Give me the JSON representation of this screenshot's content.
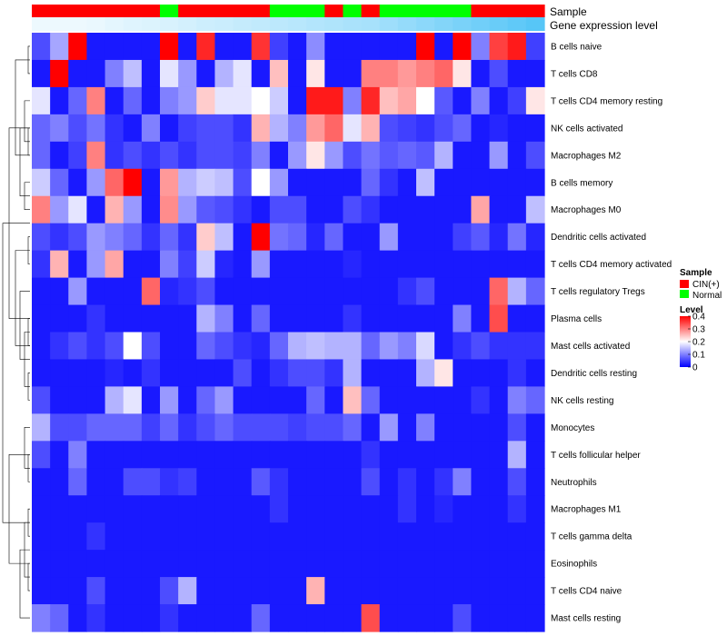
{
  "chart_data": {
    "type": "heatmap",
    "annotation_labels": {
      "sample": "Sample",
      "gene_expression": "Gene expression level"
    },
    "legend_sample": {
      "title": "Sample",
      "items": [
        {
          "label": "CIN(+)",
          "color": "#ff0000"
        },
        {
          "label": "Normal",
          "color": "#00ff00"
        }
      ]
    },
    "legend_level": {
      "title": "Level",
      "ticks": [
        "0.4",
        "0.3",
        "0.2",
        "0.1",
        "0"
      ],
      "tick_values": [
        0.4,
        0.3,
        0.2,
        0.1,
        0
      ],
      "range": [
        0,
        0.4
      ],
      "colors": {
        "low": "#0000ff",
        "mid": "#ffffff",
        "high": "#ff0000"
      }
    },
    "sample_groups": [
      "CIN(+)",
      "CIN(+)",
      "CIN(+)",
      "CIN(+)",
      "CIN(+)",
      "CIN(+)",
      "CIN(+)",
      "Normal",
      "CIN(+)",
      "CIN(+)",
      "CIN(+)",
      "CIN(+)",
      "CIN(+)",
      "Normal",
      "Normal",
      "Normal",
      "CIN(+)",
      "Normal",
      "CIN(+)",
      "Normal",
      "Normal",
      "Normal",
      "Normal",
      "Normal",
      "CIN(+)",
      "CIN(+)",
      "CIN(+)",
      "CIN(+)"
    ],
    "gene_expression_level": [
      0.1,
      0.1,
      0.1,
      0.12,
      0.15,
      0.18,
      0.2,
      0.22,
      0.25,
      0.28,
      0.3,
      0.33,
      0.35,
      0.38,
      0.4,
      0.43,
      0.45,
      0.48,
      0.5,
      0.55,
      0.6,
      0.65,
      0.7,
      0.75,
      0.8,
      0.85,
      0.9,
      0.95
    ],
    "rows": [
      "B cells naive",
      "T cells CD8",
      "T cells CD4 memory resting",
      "NK cells activated",
      "Macrophages M2",
      "B cells memory",
      "Macrophages M0",
      "Dendritic cells activated",
      "T cells CD4 memory activated",
      "T cells regulatory  Tregs",
      "Plasma cells",
      "Mast cells activated",
      "Dendritic cells resting",
      "NK cells resting",
      "Monocytes",
      "T cells follicular helper",
      "Neutrophils",
      "Macrophages M1",
      "T cells gamma delta",
      "Eosinophils",
      "T cells CD4 naive",
      "Mast cells resting"
    ],
    "values": [
      [
        0.06,
        0.13,
        0.4,
        0.02,
        0.02,
        0.02,
        0.02,
        0.4,
        0.02,
        0.37,
        0.02,
        0.02,
        0.36,
        0.05,
        0.02,
        0.11,
        0.02,
        0.02,
        0.02,
        0.02,
        0.02,
        0.4,
        0.02,
        0.4,
        0.1,
        0.35,
        0.38,
        0.05
      ],
      [
        0.02,
        0.4,
        0.02,
        0.02,
        0.1,
        0.15,
        0.02,
        0.18,
        0.12,
        0.02,
        0.14,
        0.18,
        0.02,
        0.25,
        0.02,
        0.22,
        0.02,
        0.02,
        0.3,
        0.3,
        0.28,
        0.3,
        0.32,
        0.22,
        0.02,
        0.06,
        0.02,
        0.02
      ],
      [
        0.18,
        0.02,
        0.08,
        0.3,
        0.02,
        0.08,
        0.02,
        0.1,
        0.12,
        0.24,
        0.18,
        0.18,
        0.2,
        0.16,
        0.02,
        0.38,
        0.38,
        0.1,
        0.37,
        0.25,
        0.27,
        0.2,
        0.07,
        0.02,
        0.1,
        0.02,
        0.05,
        0.22
      ],
      [
        0.08,
        0.1,
        0.06,
        0.09,
        0.04,
        0.02,
        0.1,
        0.02,
        0.05,
        0.06,
        0.06,
        0.04,
        0.26,
        0.14,
        0.1,
        0.28,
        0.32,
        0.18,
        0.26,
        0.06,
        0.05,
        0.04,
        0.06,
        0.08,
        0.02,
        0.03,
        0.02,
        0.02
      ],
      [
        0.08,
        0.02,
        0.05,
        0.3,
        0.04,
        0.06,
        0.04,
        0.06,
        0.04,
        0.06,
        0.06,
        0.05,
        0.1,
        0.02,
        0.12,
        0.22,
        0.12,
        0.06,
        0.09,
        0.07,
        0.08,
        0.07,
        0.14,
        0.02,
        0.02,
        0.12,
        0.02,
        0.06
      ],
      [
        0.16,
        0.08,
        0.02,
        0.12,
        0.32,
        0.4,
        0.02,
        0.28,
        0.14,
        0.16,
        0.15,
        0.06,
        0.2,
        0.12,
        0.02,
        0.02,
        0.02,
        0.02,
        0.08,
        0.04,
        0.02,
        0.15,
        0.02,
        0.02,
        0.02,
        0.02,
        0.02,
        0.02
      ],
      [
        0.3,
        0.12,
        0.18,
        0.02,
        0.26,
        0.12,
        0.02,
        0.29,
        0.12,
        0.07,
        0.06,
        0.04,
        0.02,
        0.06,
        0.06,
        0.02,
        0.02,
        0.06,
        0.04,
        0.02,
        0.02,
        0.02,
        0.02,
        0.02,
        0.27,
        0.02,
        0.02,
        0.15
      ],
      [
        0.06,
        0.04,
        0.06,
        0.12,
        0.1,
        0.08,
        0.04,
        0.08,
        0.04,
        0.24,
        0.15,
        0.02,
        0.4,
        0.09,
        0.08,
        0.03,
        0.08,
        0.02,
        0.02,
        0.12,
        0.02,
        0.02,
        0.02,
        0.05,
        0.07,
        0.03,
        0.09,
        0.03
      ],
      [
        0.04,
        0.26,
        0.02,
        0.12,
        0.27,
        0.02,
        0.02,
        0.1,
        0.05,
        0.16,
        0.03,
        0.02,
        0.12,
        0.02,
        0.02,
        0.02,
        0.02,
        0.03,
        0.02,
        0.02,
        0.02,
        0.02,
        0.02,
        0.02,
        0.02,
        0.02,
        0.02,
        0.02
      ],
      [
        0.02,
        0.02,
        0.12,
        0.02,
        0.02,
        0.02,
        0.32,
        0.03,
        0.04,
        0.06,
        0.02,
        0.02,
        0.02,
        0.02,
        0.02,
        0.02,
        0.02,
        0.02,
        0.02,
        0.02,
        0.04,
        0.06,
        0.02,
        0.02,
        0.02,
        0.32,
        0.14,
        0.08
      ],
      [
        0.02,
        0.02,
        0.02,
        0.04,
        0.02,
        0.02,
        0.02,
        0.02,
        0.02,
        0.14,
        0.1,
        0.02,
        0.08,
        0.02,
        0.02,
        0.02,
        0.02,
        0.04,
        0.02,
        0.02,
        0.02,
        0.02,
        0.02,
        0.1,
        0.02,
        0.34,
        0.02,
        0.02
      ],
      [
        0.02,
        0.04,
        0.06,
        0.04,
        0.06,
        0.2,
        0.06,
        0.02,
        0.02,
        0.08,
        0.06,
        0.04,
        0.03,
        0.08,
        0.14,
        0.15,
        0.14,
        0.14,
        0.08,
        0.12,
        0.1,
        0.17,
        0.02,
        0.04,
        0.06,
        0.04,
        0.04,
        0.04
      ],
      [
        0.02,
        0.02,
        0.02,
        0.02,
        0.03,
        0.02,
        0.04,
        0.02,
        0.02,
        0.02,
        0.02,
        0.06,
        0.02,
        0.04,
        0.06,
        0.06,
        0.04,
        0.14,
        0.02,
        0.02,
        0.02,
        0.14,
        0.22,
        0.02,
        0.02,
        0.02,
        0.04,
        0.02
      ],
      [
        0.06,
        0.02,
        0.02,
        0.02,
        0.14,
        0.18,
        0.02,
        0.12,
        0.02,
        0.08,
        0.12,
        0.02,
        0.02,
        0.02,
        0.02,
        0.08,
        0.02,
        0.25,
        0.08,
        0.02,
        0.02,
        0.02,
        0.02,
        0.02,
        0.04,
        0.02,
        0.1,
        0.08
      ],
      [
        0.14,
        0.06,
        0.06,
        0.08,
        0.08,
        0.08,
        0.05,
        0.08,
        0.04,
        0.06,
        0.08,
        0.06,
        0.06,
        0.06,
        0.05,
        0.06,
        0.06,
        0.08,
        0.02,
        0.12,
        0.02,
        0.1,
        0.02,
        0.02,
        0.02,
        0.02,
        0.06,
        0.02
      ],
      [
        0.06,
        0.02,
        0.1,
        0.02,
        0.02,
        0.02,
        0.02,
        0.02,
        0.02,
        0.02,
        0.02,
        0.02,
        0.02,
        0.02,
        0.02,
        0.02,
        0.02,
        0.02,
        0.04,
        0.02,
        0.02,
        0.02,
        0.02,
        0.02,
        0.02,
        0.02,
        0.14,
        0.02
      ],
      [
        0.02,
        0.02,
        0.08,
        0.02,
        0.02,
        0.06,
        0.06,
        0.04,
        0.05,
        0.02,
        0.02,
        0.02,
        0.07,
        0.04,
        0.02,
        0.02,
        0.02,
        0.02,
        0.06,
        0.02,
        0.04,
        0.02,
        0.04,
        0.1,
        0.02,
        0.02,
        0.06,
        0.02
      ],
      [
        0.02,
        0.02,
        0.02,
        0.02,
        0.02,
        0.02,
        0.02,
        0.02,
        0.02,
        0.02,
        0.02,
        0.02,
        0.02,
        0.04,
        0.02,
        0.02,
        0.02,
        0.02,
        0.02,
        0.02,
        0.04,
        0.02,
        0.03,
        0.02,
        0.02,
        0.02,
        0.04,
        0.02
      ],
      [
        0.02,
        0.02,
        0.02,
        0.04,
        0.02,
        0.02,
        0.02,
        0.02,
        0.02,
        0.02,
        0.02,
        0.02,
        0.02,
        0.02,
        0.02,
        0.02,
        0.02,
        0.02,
        0.02,
        0.02,
        0.02,
        0.02,
        0.02,
        0.02,
        0.02,
        0.02,
        0.02,
        0.02
      ],
      [
        0.02,
        0.02,
        0.02,
        0.02,
        0.02,
        0.02,
        0.02,
        0.02,
        0.02,
        0.02,
        0.02,
        0.02,
        0.02,
        0.02,
        0.02,
        0.02,
        0.02,
        0.02,
        0.02,
        0.02,
        0.02,
        0.02,
        0.02,
        0.02,
        0.02,
        0.02,
        0.02,
        0.02
      ],
      [
        0.02,
        0.02,
        0.02,
        0.06,
        0.02,
        0.02,
        0.02,
        0.06,
        0.14,
        0.02,
        0.02,
        0.02,
        0.02,
        0.02,
        0.02,
        0.26,
        0.02,
        0.02,
        0.02,
        0.02,
        0.02,
        0.02,
        0.02,
        0.02,
        0.02,
        0.02,
        0.02,
        0.02
      ],
      [
        0.1,
        0.08,
        0.02,
        0.04,
        0.02,
        0.02,
        0.02,
        0.04,
        0.02,
        0.02,
        0.02,
        0.02,
        0.08,
        0.02,
        0.02,
        0.02,
        0.02,
        0.02,
        0.34,
        0.02,
        0.02,
        0.02,
        0.02,
        0.06,
        0.02,
        0.02,
        0.02,
        0.02
      ]
    ]
  }
}
